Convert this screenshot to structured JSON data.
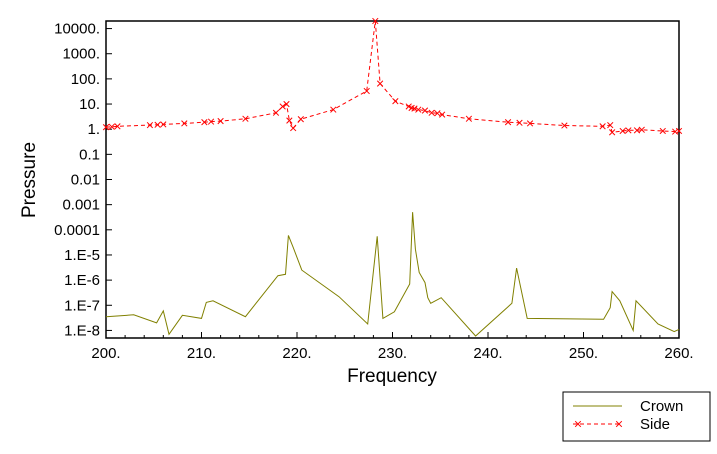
{
  "chart_data": {
    "type": "line",
    "xlabel": "Frequency",
    "ylabel": "Pressure",
    "xlim": [
      200,
      260
    ],
    "ylim": [
      5e-09,
      20000
    ],
    "yscale": "log",
    "grid": false,
    "legend_position": "bottom-right",
    "x_ticks": [
      200,
      210,
      220,
      230,
      240,
      250,
      260
    ],
    "x_tick_labels": [
      "200.",
      "210.",
      "220.",
      "230.",
      "240.",
      "250.",
      "260."
    ],
    "y_ticks": [
      1e-08,
      1e-07,
      1e-06,
      1e-05,
      0.0001,
      0.001,
      0.01,
      0.1,
      1,
      10,
      100,
      1000,
      10000
    ],
    "y_tick_labels": [
      "1.E-8",
      "1.E-7",
      "1.E-6",
      "1.E-5",
      "0.0001",
      "0.001",
      "0.01",
      "0.1",
      "1.",
      "10.",
      "100.",
      "1000.",
      "10000."
    ],
    "series": [
      {
        "name": "Crown",
        "color": "#808000",
        "style": "solid",
        "marker": "none",
        "x": [
          200,
          202.9,
          205.3,
          206.0,
          206.6,
          208.0,
          210.0,
          210.5,
          211.2,
          214.6,
          218.0,
          218.8,
          219.1,
          219.6,
          220.5,
          224.4,
          227.4,
          228.4,
          229.0,
          230.2,
          231.8,
          232.1,
          232.4,
          232.8,
          233.4,
          233.7,
          234.0,
          235.1,
          238.7,
          242.5,
          243.0,
          244.1,
          252.1,
          252.8,
          253.0,
          253.8,
          255.2,
          255.5,
          257.8,
          259.5,
          260.0
        ],
        "y": [
          3.5e-08,
          4.2e-08,
          2e-08,
          6e-08,
          7e-09,
          4e-08,
          3e-08,
          1.3e-07,
          1.5e-07,
          3.5e-08,
          1.5e-06,
          1.7e-06,
          6e-05,
          2e-05,
          2.5e-06,
          2.2e-07,
          1.8e-08,
          5.5e-05,
          3e-08,
          5.5e-08,
          7e-07,
          0.0005,
          1.7e-05,
          2e-06,
          8e-07,
          2e-07,
          1.2e-07,
          2e-07,
          6e-09,
          1.2e-07,
          3e-06,
          3e-08,
          2.8e-08,
          8e-08,
          3.5e-07,
          1.5e-07,
          1e-08,
          1.5e-07,
          1.8e-08,
          9e-09,
          1.1e-08
        ]
      },
      {
        "name": "Side",
        "color": "#ff0000",
        "style": "dashed",
        "marker": "x",
        "x": [
          200,
          200.6,
          201.2,
          204.6,
          205.4,
          206.0,
          208.2,
          210.3,
          211.0,
          212.0,
          214.6,
          217.8,
          218.5,
          218.9,
          219.2,
          219.6,
          220.4,
          223.8,
          227.3,
          228.2,
          228.7,
          230.3,
          231.7,
          232.0,
          232.3,
          232.7,
          233.4,
          234.1,
          234.7,
          235.2,
          238.0,
          242.1,
          243.3,
          244.4,
          248.0,
          252.0,
          252.8,
          253.0,
          254.1,
          254.7,
          255.6,
          256.1,
          258.3,
          259.6,
          260.0
        ],
        "y": [
          1.2,
          1.25,
          1.3,
          1.45,
          1.5,
          1.55,
          1.7,
          1.9,
          2.0,
          2.1,
          2.6,
          4.5,
          8.0,
          10.0,
          2.2,
          1.1,
          2.5,
          6.0,
          33,
          20000,
          65,
          13,
          8.0,
          7.0,
          6.6,
          6.0,
          5.5,
          4.5,
          4.3,
          3.8,
          2.6,
          1.9,
          1.8,
          1.7,
          1.4,
          1.3,
          1.45,
          0.75,
          0.85,
          0.9,
          0.9,
          0.95,
          0.85,
          0.8,
          0.85
        ]
      }
    ]
  }
}
